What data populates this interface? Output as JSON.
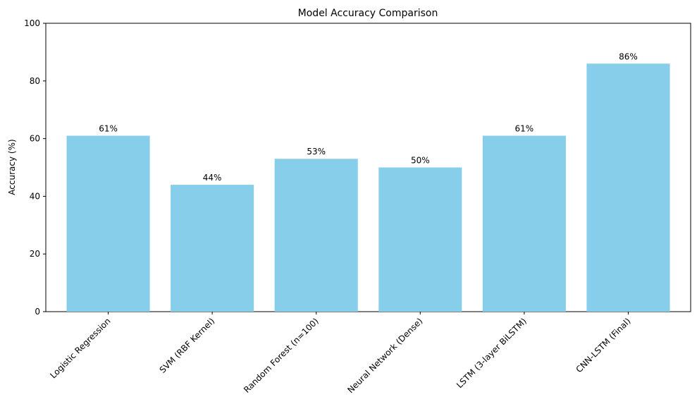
{
  "chart_data": {
    "type": "bar",
    "title": "Model Accuracy Comparison",
    "xlabel": "",
    "ylabel": "Accuracy (%)",
    "categories": [
      "Logistic Regression",
      "SVM (RBF Kernel)",
      "Random Forest (n=100)",
      "Neural Network (Dense)",
      "LSTM (3-layer BiLSTM)",
      "CNN-LSTM (Final)"
    ],
    "values": [
      61,
      44,
      53,
      50,
      61,
      86
    ],
    "data_labels": [
      "61%",
      "44%",
      "53%",
      "50%",
      "61%",
      "86%"
    ],
    "ylim": [
      0,
      100
    ],
    "yticks": [
      0,
      20,
      40,
      60,
      80,
      100
    ],
    "ytick_labels": [
      "0",
      "20",
      "40",
      "60",
      "80",
      "100"
    ],
    "grid": false,
    "bar_color": "#87CEEB",
    "axis_color": "#000000"
  }
}
